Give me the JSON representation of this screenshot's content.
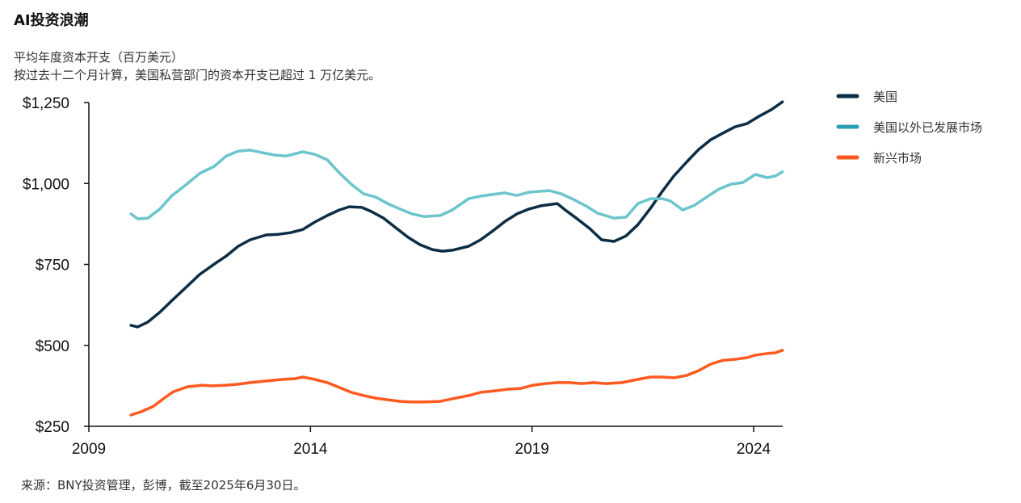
{
  "title": "AI投资浪潮",
  "subtitle1": "平均年度资本开支（百万美元）",
  "subtitle2": "按过去十二个月计算，美国私营部门的资本开支已超过 1 万亿美元。",
  "source": "来源：BNY投资管理，彭博，截至2025年6月30日。",
  "chart_data": {
    "type": "line",
    "title": "AI投资浪潮",
    "ylabel": "平均年度资本开支（百万美元）",
    "xlim": [
      2009,
      2024.65
    ],
    "ylim": [
      250,
      1250
    ],
    "x_ticks": [
      "2009",
      "2014",
      "2019",
      "2024"
    ],
    "y_ticks": [
      "$250",
      "$500",
      "$750",
      "$1,000",
      "$1,250"
    ],
    "y_tick_values": [
      250,
      500,
      750,
      1000,
      1250
    ],
    "x_tick_values": [
      2009,
      2014,
      2019,
      2024
    ],
    "grid": false,
    "legend_position": "right",
    "series": [
      {
        "name": "美国",
        "color": "#0b2d45",
        "legend_color": "#0b2d45",
        "points": [
          [
            2009.95,
            562
          ],
          [
            2010.1,
            557
          ],
          [
            2010.33,
            572
          ],
          [
            2010.6,
            602
          ],
          [
            2010.88,
            639
          ],
          [
            2011.19,
            679
          ],
          [
            2011.5,
            719
          ],
          [
            2011.83,
            751
          ],
          [
            2012.1,
            776
          ],
          [
            2012.37,
            806
          ],
          [
            2012.64,
            826
          ],
          [
            2013.0,
            841
          ],
          [
            2013.28,
            843
          ],
          [
            2013.55,
            848
          ],
          [
            2013.83,
            858
          ],
          [
            2014.1,
            881
          ],
          [
            2014.38,
            901
          ],
          [
            2014.65,
            918
          ],
          [
            2014.87,
            928
          ],
          [
            2015.16,
            926
          ],
          [
            2015.38,
            913
          ],
          [
            2015.65,
            893
          ],
          [
            2015.93,
            863
          ],
          [
            2016.2,
            834
          ],
          [
            2016.47,
            811
          ],
          [
            2016.75,
            796
          ],
          [
            2016.98,
            791
          ],
          [
            2017.2,
            794
          ],
          [
            2017.57,
            806
          ],
          [
            2017.84,
            826
          ],
          [
            2018.11,
            853
          ],
          [
            2018.39,
            883
          ],
          [
            2018.66,
            906
          ],
          [
            2018.93,
            921
          ],
          [
            2019.2,
            931
          ],
          [
            2019.57,
            938
          ],
          [
            2019.75,
            918
          ],
          [
            2020.0,
            893
          ],
          [
            2020.3,
            861
          ],
          [
            2020.57,
            826
          ],
          [
            2020.85,
            821
          ],
          [
            2021.12,
            838
          ],
          [
            2021.39,
            873
          ],
          [
            2021.67,
            923
          ],
          [
            2021.94,
            976
          ],
          [
            2022.2,
            1023
          ],
          [
            2022.5,
            1068
          ],
          [
            2022.76,
            1105
          ],
          [
            2023.03,
            1135
          ],
          [
            2023.3,
            1155
          ],
          [
            2023.58,
            1175
          ],
          [
            2023.85,
            1185
          ],
          [
            2024.13,
            1208
          ],
          [
            2024.4,
            1228
          ],
          [
            2024.65,
            1252
          ]
        ]
      },
      {
        "name": "美国以外已发展市场",
        "color": "#6cc5cc",
        "legend_color": "#2a9fb0",
        "points": [
          [
            2009.95,
            906
          ],
          [
            2010.1,
            891
          ],
          [
            2010.33,
            893
          ],
          [
            2010.6,
            921
          ],
          [
            2010.88,
            963
          ],
          [
            2011.19,
            996
          ],
          [
            2011.5,
            1031
          ],
          [
            2011.83,
            1053
          ],
          [
            2012.1,
            1085
          ],
          [
            2012.37,
            1100
          ],
          [
            2012.64,
            1103
          ],
          [
            2012.92,
            1095
          ],
          [
            2013.19,
            1088
          ],
          [
            2013.46,
            1085
          ],
          [
            2013.83,
            1098
          ],
          [
            2014.1,
            1090
          ],
          [
            2014.38,
            1073
          ],
          [
            2014.65,
            1033
          ],
          [
            2014.92,
            998
          ],
          [
            2015.2,
            968
          ],
          [
            2015.47,
            958
          ],
          [
            2015.74,
            938
          ],
          [
            2016.02,
            921
          ],
          [
            2016.29,
            906
          ],
          [
            2016.56,
            898
          ],
          [
            2016.93,
            901
          ],
          [
            2017.2,
            918
          ],
          [
            2017.57,
            953
          ],
          [
            2017.84,
            961
          ],
          [
            2018.11,
            966
          ],
          [
            2018.39,
            971
          ],
          [
            2018.66,
            963
          ],
          [
            2018.93,
            973
          ],
          [
            2019.2,
            976
          ],
          [
            2019.39,
            978
          ],
          [
            2019.66,
            968
          ],
          [
            2019.93,
            951
          ],
          [
            2020.21,
            931
          ],
          [
            2020.48,
            908
          ],
          [
            2020.85,
            893
          ],
          [
            2021.12,
            896
          ],
          [
            2021.39,
            938
          ],
          [
            2021.67,
            953
          ],
          [
            2021.94,
            953
          ],
          [
            2022.12,
            946
          ],
          [
            2022.4,
            918
          ],
          [
            2022.67,
            933
          ],
          [
            2022.94,
            958
          ],
          [
            2023.22,
            983
          ],
          [
            2023.49,
            998
          ],
          [
            2023.76,
            1003
          ],
          [
            2024.04,
            1028
          ],
          [
            2024.31,
            1018
          ],
          [
            2024.49,
            1023
          ],
          [
            2024.65,
            1036
          ]
        ]
      },
      {
        "name": "新兴市场",
        "color": "#ff5a1f",
        "legend_color": "#ff5a1f",
        "points": [
          [
            2009.95,
            285
          ],
          [
            2010.18,
            295
          ],
          [
            2010.46,
            312
          ],
          [
            2010.73,
            340
          ],
          [
            2010.91,
            357
          ],
          [
            2011.22,
            372
          ],
          [
            2011.55,
            377
          ],
          [
            2011.77,
            375
          ],
          [
            2012.1,
            377
          ],
          [
            2012.37,
            380
          ],
          [
            2012.64,
            385
          ],
          [
            2013.0,
            390
          ],
          [
            2013.37,
            395
          ],
          [
            2013.65,
            397
          ],
          [
            2013.83,
            402
          ],
          [
            2014.1,
            395
          ],
          [
            2014.38,
            385
          ],
          [
            2014.65,
            370
          ],
          [
            2014.92,
            355
          ],
          [
            2015.2,
            345
          ],
          [
            2015.47,
            337
          ],
          [
            2015.74,
            332
          ],
          [
            2016.02,
            327
          ],
          [
            2016.29,
            325
          ],
          [
            2016.56,
            325
          ],
          [
            2016.93,
            327
          ],
          [
            2017.2,
            335
          ],
          [
            2017.57,
            345
          ],
          [
            2017.84,
            355
          ],
          [
            2018.2,
            360
          ],
          [
            2018.48,
            365
          ],
          [
            2018.75,
            367
          ],
          [
            2019.02,
            377
          ],
          [
            2019.3,
            382
          ],
          [
            2019.57,
            385
          ],
          [
            2019.84,
            385
          ],
          [
            2020.12,
            382
          ],
          [
            2020.39,
            385
          ],
          [
            2020.66,
            382
          ],
          [
            2021.03,
            385
          ],
          [
            2021.39,
            395
          ],
          [
            2021.67,
            402
          ],
          [
            2021.94,
            402
          ],
          [
            2022.21,
            400
          ],
          [
            2022.49,
            407
          ],
          [
            2022.76,
            422
          ],
          [
            2023.03,
            442
          ],
          [
            2023.31,
            454
          ],
          [
            2023.58,
            457
          ],
          [
            2023.85,
            462
          ],
          [
            2024.04,
            470
          ],
          [
            2024.31,
            475
          ],
          [
            2024.49,
            477
          ],
          [
            2024.65,
            485
          ]
        ]
      }
    ]
  }
}
